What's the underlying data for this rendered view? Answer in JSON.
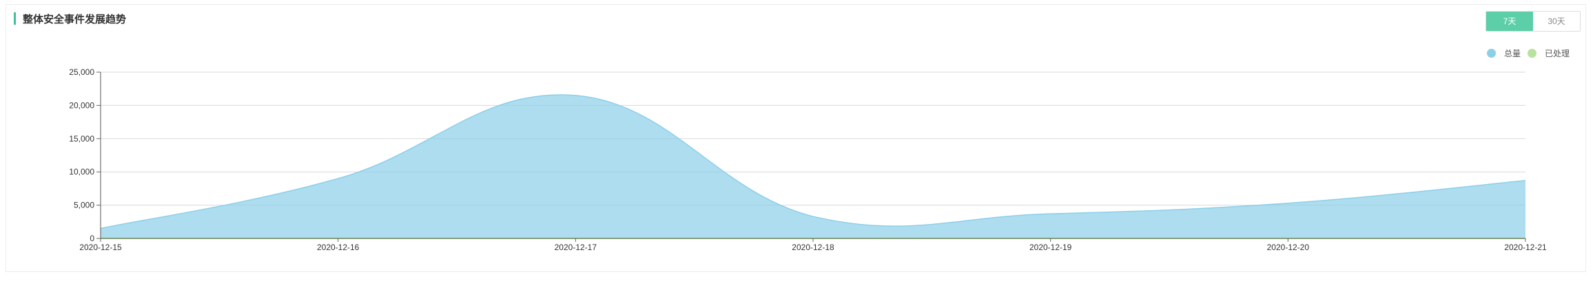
{
  "panel": {
    "title": "整体安全事件发展趋势",
    "range_buttons": [
      {
        "label": "7天",
        "active": true
      },
      {
        "label": "30天",
        "active": false
      }
    ]
  },
  "chart_data": {
    "type": "area",
    "x": [
      "2020-12-15",
      "2020-12-16",
      "2020-12-17",
      "2020-12-18",
      "2020-12-19",
      "2020-12-20",
      "2020-12-21"
    ],
    "series": [
      {
        "name": "总量",
        "color": "#8ccfe9",
        "values": [
          1500,
          9000,
          21500,
          3300,
          3700,
          5300,
          8700
        ]
      },
      {
        "name": "已处理",
        "color": "#b7e39f",
        "values": [
          0,
          0,
          0,
          0,
          0,
          0,
          0
        ]
      }
    ],
    "yticks": [
      "0",
      "5,000",
      "10,000",
      "15,000",
      "20,000",
      "25,000"
    ],
    "ylim": [
      0,
      25000
    ],
    "grid": true,
    "legend_position": "top-right"
  }
}
